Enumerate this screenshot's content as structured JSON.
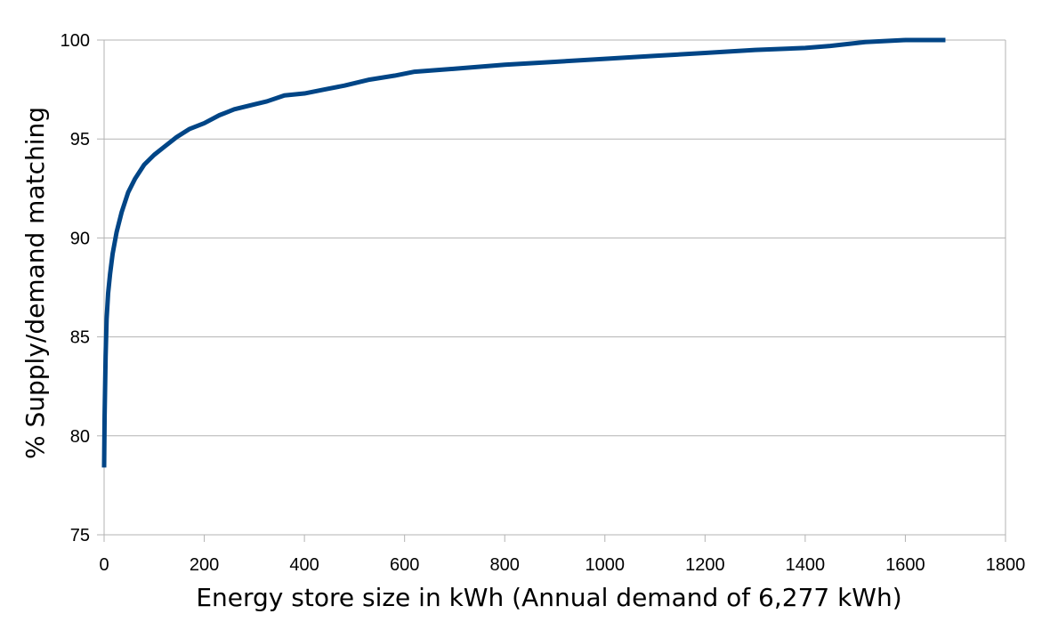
{
  "chart_data": {
    "type": "line",
    "title": "",
    "xlabel": "Energy store size in kWh (Annual demand of 6,277 kWh)",
    "ylabel": "% Supply/demand matching",
    "xlim": [
      0,
      1800
    ],
    "ylim": [
      75,
      100
    ],
    "x_ticks": [
      0,
      200,
      400,
      600,
      800,
      1000,
      1200,
      1400,
      1600,
      1800
    ],
    "y_ticks": [
      75,
      80,
      85,
      90,
      95,
      100
    ],
    "x_tick_labels": [
      "0",
      "200",
      "400",
      "600",
      "800",
      "1000",
      "1200",
      "1400",
      "1600",
      "1800"
    ],
    "y_tick_labels": [
      "75",
      "80",
      "85",
      "90",
      "95",
      "100"
    ],
    "grid": "horizontal",
    "legend": "none",
    "series": [
      {
        "color": "#004586",
        "points": [
          [
            0,
            78.4
          ],
          [
            1,
            81.0
          ],
          [
            3,
            84.0
          ],
          [
            5,
            85.9
          ],
          [
            8,
            87.2
          ],
          [
            12,
            88.2
          ],
          [
            17,
            89.2
          ],
          [
            25,
            90.3
          ],
          [
            35,
            91.3
          ],
          [
            48,
            92.3
          ],
          [
            62,
            93.0
          ],
          [
            80,
            93.7
          ],
          [
            100,
            94.2
          ],
          [
            120,
            94.6
          ],
          [
            145,
            95.1
          ],
          [
            170,
            95.5
          ],
          [
            200,
            95.8
          ],
          [
            230,
            96.2
          ],
          [
            260,
            96.5
          ],
          [
            300,
            96.75
          ],
          [
            325,
            96.9
          ],
          [
            360,
            97.2
          ],
          [
            400,
            97.3
          ],
          [
            440,
            97.5
          ],
          [
            480,
            97.7
          ],
          [
            530,
            98.0
          ],
          [
            580,
            98.2
          ],
          [
            620,
            98.4
          ],
          [
            700,
            98.55
          ],
          [
            800,
            98.75
          ],
          [
            900,
            98.9
          ],
          [
            1000,
            99.05
          ],
          [
            1100,
            99.2
          ],
          [
            1200,
            99.35
          ],
          [
            1300,
            99.5
          ],
          [
            1400,
            99.6
          ],
          [
            1450,
            99.7
          ],
          [
            1520,
            99.9
          ],
          [
            1600,
            100.0
          ],
          [
            1680,
            100.0
          ]
        ]
      }
    ]
  }
}
